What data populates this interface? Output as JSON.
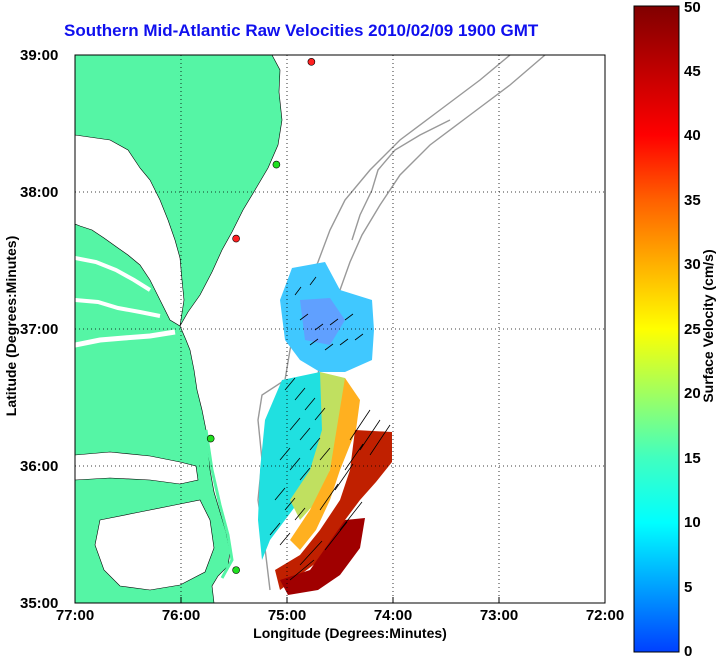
{
  "title": "Southern Mid-Atlantic Raw Velocities 2010/02/09 1900 GMT",
  "axes": {
    "xlabel": "Longitude (Degrees:Minutes)",
    "ylabel": "Latitude (Degrees:Minutes)",
    "xticks": [
      "77:00",
      "76:00",
      "75:00",
      "74:00",
      "73:00",
      "72:00"
    ],
    "yticks": [
      "39:00",
      "38:00",
      "37:00",
      "36:00",
      "35:00"
    ]
  },
  "colorbar": {
    "label": "Surface Velocity (cm/s)",
    "ticks": [
      "0",
      "5",
      "10",
      "15",
      "20",
      "25",
      "30",
      "35",
      "40",
      "45",
      "50"
    ],
    "min": 0,
    "max": 50,
    "colors": [
      "#0040ff",
      "#00a0ff",
      "#00ffff",
      "#40ffc0",
      "#c0ff40",
      "#ffff00",
      "#ffa000",
      "#ff4000",
      "#ff0000",
      "#c00000",
      "#800000"
    ]
  },
  "map": {
    "land_color": "#55f5a5",
    "water_color": "#ffffff",
    "bathymetry_color": "#999999",
    "grid": true
  },
  "stations": [
    {
      "lon": -74.77,
      "lat": 38.95,
      "color": "#ff2020"
    },
    {
      "lon": -75.1,
      "lat": 38.2,
      "color": "#20e020"
    },
    {
      "lon": -75.48,
      "lat": 37.66,
      "color": "#ff2020"
    },
    {
      "lon": -75.72,
      "lat": 36.2,
      "color": "#20e020"
    },
    {
      "lon": -75.48,
      "lat": 35.24,
      "color": "#20e020"
    }
  ]
}
